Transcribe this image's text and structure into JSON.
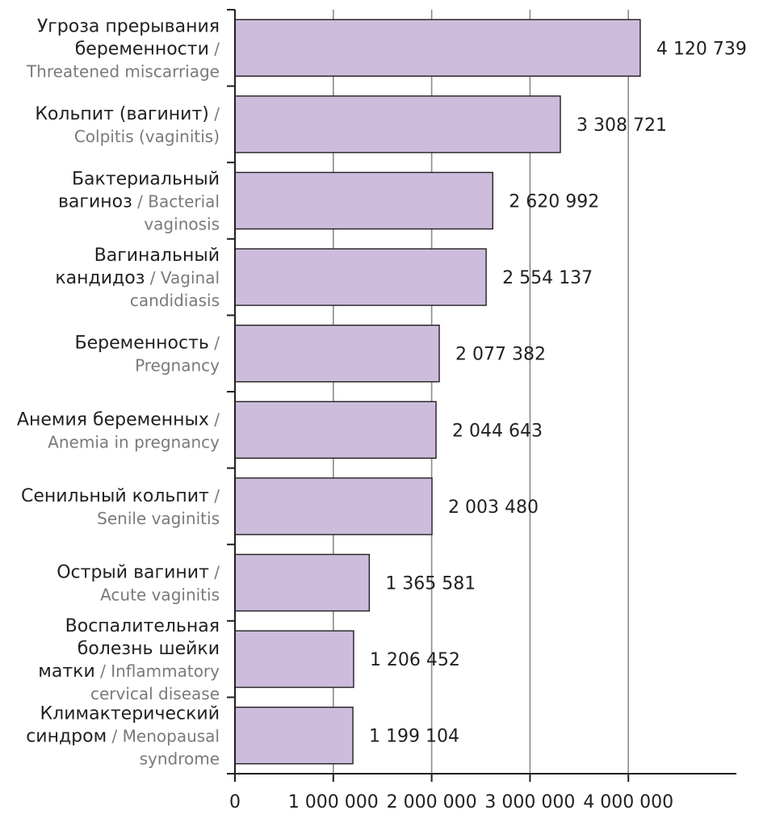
{
  "chart_data": {
    "type": "bar",
    "orientation": "horizontal",
    "title": "",
    "xlabel": "",
    "ylabel": "",
    "xlim": [
      0,
      5000000
    ],
    "grid": true,
    "bar_color": "#cdbcdb",
    "bar_edge_color": "#231f20",
    "grid_color": "#8a8a8a",
    "categories": [
      {
        "lines": [
          {
            "ru": "Угроза прерывания"
          },
          {
            "ru": "беременности",
            "en": " /"
          },
          {
            "en": "Threatened miscarriage"
          }
        ]
      },
      {
        "lines": [
          {
            "ru": "Кольпит (вагинит)",
            "en": " /"
          },
          {
            "en": "Colpitis (vaginitis)"
          }
        ]
      },
      {
        "lines": [
          {
            "ru": "Бактериальный"
          },
          {
            "ru": "вагиноз",
            "en": " / Bacterial"
          },
          {
            "en": "vaginosis"
          }
        ]
      },
      {
        "lines": [
          {
            "ru": "Вагинальный"
          },
          {
            "ru": "кандидоз",
            "en": " / Vaginal"
          },
          {
            "en": "candidiasis"
          }
        ]
      },
      {
        "lines": [
          {
            "ru": "Беременность",
            "en": " /"
          },
          {
            "en": "Pregnancy"
          }
        ]
      },
      {
        "lines": [
          {
            "ru": "Анемия беременных",
            "en": " /"
          },
          {
            "en": "Anemia in pregnancy"
          }
        ]
      },
      {
        "lines": [
          {
            "ru": "Сенильный кольпит",
            "en": " /"
          },
          {
            "en": "Senile vaginitis"
          }
        ]
      },
      {
        "lines": [
          {
            "ru": "Острый вагинит",
            "en": " /"
          },
          {
            "en": "Acute vaginitis"
          }
        ]
      },
      {
        "lines": [
          {
            "ru": "Воспалительная"
          },
          {
            "ru": "болезнь шейки"
          },
          {
            "ru": "матки",
            "en": " / Inflammatory"
          },
          {
            "en": "cervical disease"
          }
        ]
      },
      {
        "lines": [
          {
            "ru": "Климактерический"
          },
          {
            "ru": "синдром",
            "en": " / Menopausal"
          },
          {
            "en": "syndrome"
          }
        ]
      }
    ],
    "values": [
      4120739,
      3308721,
      2620992,
      2554137,
      2077382,
      2044643,
      2003480,
      1365581,
      1206452,
      1199104
    ],
    "value_labels": [
      "4 120 739",
      "3 308 721",
      "2 620 992",
      "2 554 137",
      "2 077 382",
      "2 044 643",
      "2 003 480",
      "1 365 581",
      "1 206 452",
      "1 199 104"
    ],
    "x_ticks": [
      {
        "value": 0,
        "label": "0"
      },
      {
        "value": 1000000,
        "label": "1 000 000"
      },
      {
        "value": 2000000,
        "label": "2 000 000"
      },
      {
        "value": 3000000,
        "label": "3 000 000"
      },
      {
        "value": 4000000,
        "label": "4 000 000"
      }
    ]
  }
}
